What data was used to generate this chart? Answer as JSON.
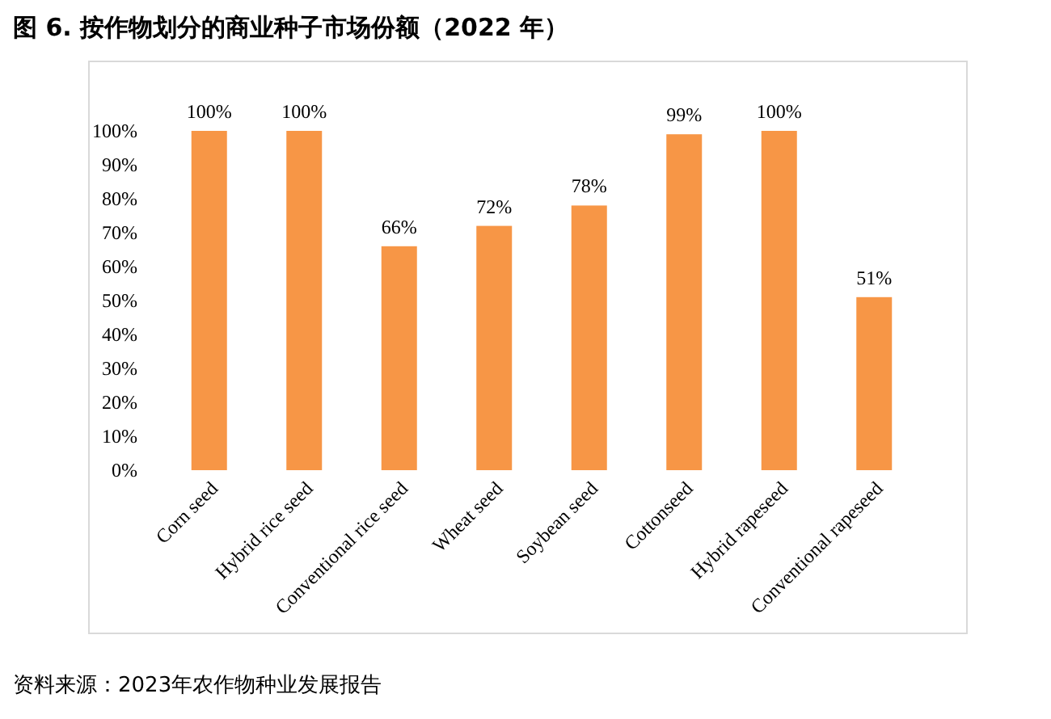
{
  "chart_data": {
    "type": "bar",
    "title": "图 6. 按作物划分的商业种子市场份额（2022 年）",
    "categories": [
      "Corn seed",
      "Hybrid rice seed",
      "Conventional rice seed",
      "Wheat seed",
      "Soybean seed",
      "Cottonseed",
      "Hybrid rapeseed",
      "Conventional rapeseed"
    ],
    "values": [
      100,
      100,
      66,
      72,
      78,
      99,
      100,
      51
    ],
    "value_labels": [
      "100%",
      "100%",
      "66%",
      "72%",
      "78%",
      "99%",
      "100%",
      "51%"
    ],
    "color": "#f79646",
    "ylim": [
      0,
      100
    ],
    "yticks": [
      {
        "value": 0,
        "label": "0%"
      },
      {
        "value": 10,
        "label": "10%"
      },
      {
        "value": 20,
        "label": "20%"
      },
      {
        "value": 30,
        "label": "30%"
      },
      {
        "value": 40,
        "label": "40%"
      },
      {
        "value": 50,
        "label": "50%"
      },
      {
        "value": 60,
        "label": "60%"
      },
      {
        "value": 70,
        "label": "70%"
      },
      {
        "value": 80,
        "label": "80%"
      },
      {
        "value": 90,
        "label": "90%"
      },
      {
        "value": 100,
        "label": "100%"
      }
    ],
    "annotations": [
      "资料来源：2023年农作物种业发展报告"
    ]
  }
}
